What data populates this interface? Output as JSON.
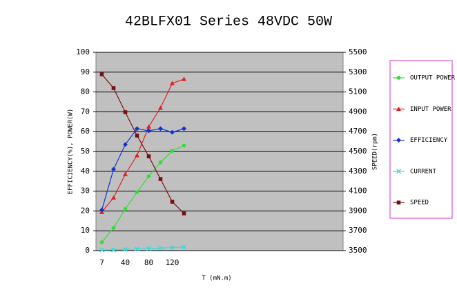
{
  "chart_data": {
    "type": "line",
    "title": "42BLFX01 Series 48VDC 50W",
    "x_label": "T (mN.m)",
    "y_label": "EFFICIENCY(%), POWER(W)",
    "y2_label": "SPEED(rpm)",
    "categories": [
      "7",
      null,
      "40",
      null,
      "80",
      null,
      "120",
      null
    ],
    "ylim": [
      0,
      100
    ],
    "yticks": [
      0,
      10,
      20,
      30,
      40,
      50,
      60,
      70,
      80,
      90,
      100
    ],
    "y2lim": [
      3500,
      5500
    ],
    "y2ticks": [
      3500,
      3700,
      3900,
      4100,
      4300,
      4500,
      4700,
      4900,
      5100,
      5300,
      5500
    ],
    "grid": true,
    "series": [
      {
        "name": "OUTPUT POWER",
        "color": "#33dd33",
        "marker": "circle",
        "values": [
          4.2,
          11.5,
          21,
          29.5,
          37.5,
          44.5,
          50.3,
          53
        ]
      },
      {
        "name": "INPUT POWER",
        "color": "#dd2222",
        "marker": "triangle",
        "values": [
          19.4,
          26.7,
          38.5,
          48,
          62.5,
          72,
          84.4,
          86.5
        ]
      },
      {
        "name": "EFFICIENCY",
        "color": "#1133cc",
        "marker": "diamond",
        "values": [
          20.5,
          41,
          53.5,
          61.5,
          60.4,
          61.5,
          59.7,
          61.5
        ]
      },
      {
        "name": "CURRENT",
        "color": "#33dddd",
        "marker": "x",
        "values": [
          0.3,
          0.4,
          0.6,
          0.8,
          1.0,
          1.3,
          1.5,
          1.8
        ]
      },
      {
        "name": "SPEED",
        "color": "#771111",
        "marker": "square",
        "axis": "y2",
        "values": [
          5278,
          5139,
          4896,
          4660,
          4451,
          4222,
          3993,
          3875
        ]
      }
    ]
  }
}
